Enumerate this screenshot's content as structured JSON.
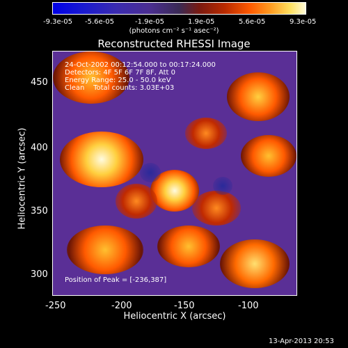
{
  "colorbar": {
    "ticks": [
      "-9.3e-05",
      "-5.6e-05",
      "-1.9e-05",
      "1.9e-05",
      "5.6e-05",
      "9.3e-05"
    ],
    "units": "(photons cm⁻² s⁻¹ asec⁻²)"
  },
  "title": "Reconstructed RHESSI Image",
  "info": {
    "line1": "24-Oct-2002 00:12:54.000 to 00:17:24.000",
    "line2": "Detectors: 4F 5F 6F 7F 8F, Att 0",
    "line3": "Energy Range: 25.0 - 50.0 keV",
    "line4": "Clean    Total counts: 3.03E+03",
    "peak": "Position of Peak = [-236,387]"
  },
  "yaxis": {
    "label": "Heliocentric Y (arcsec)",
    "ticks": [
      "450",
      "400",
      "350",
      "300"
    ]
  },
  "xaxis": {
    "label": "Heliocentric X (arcsec)",
    "ticks": [
      "-250",
      "-200",
      "-150",
      "-100"
    ]
  },
  "timestamp": "13-Apr-2013 20:53",
  "colors": {
    "background": "#5a2f96",
    "hot": "#fff3a0",
    "warm": "#ff6a00",
    "dark": "#2a0a05"
  }
}
